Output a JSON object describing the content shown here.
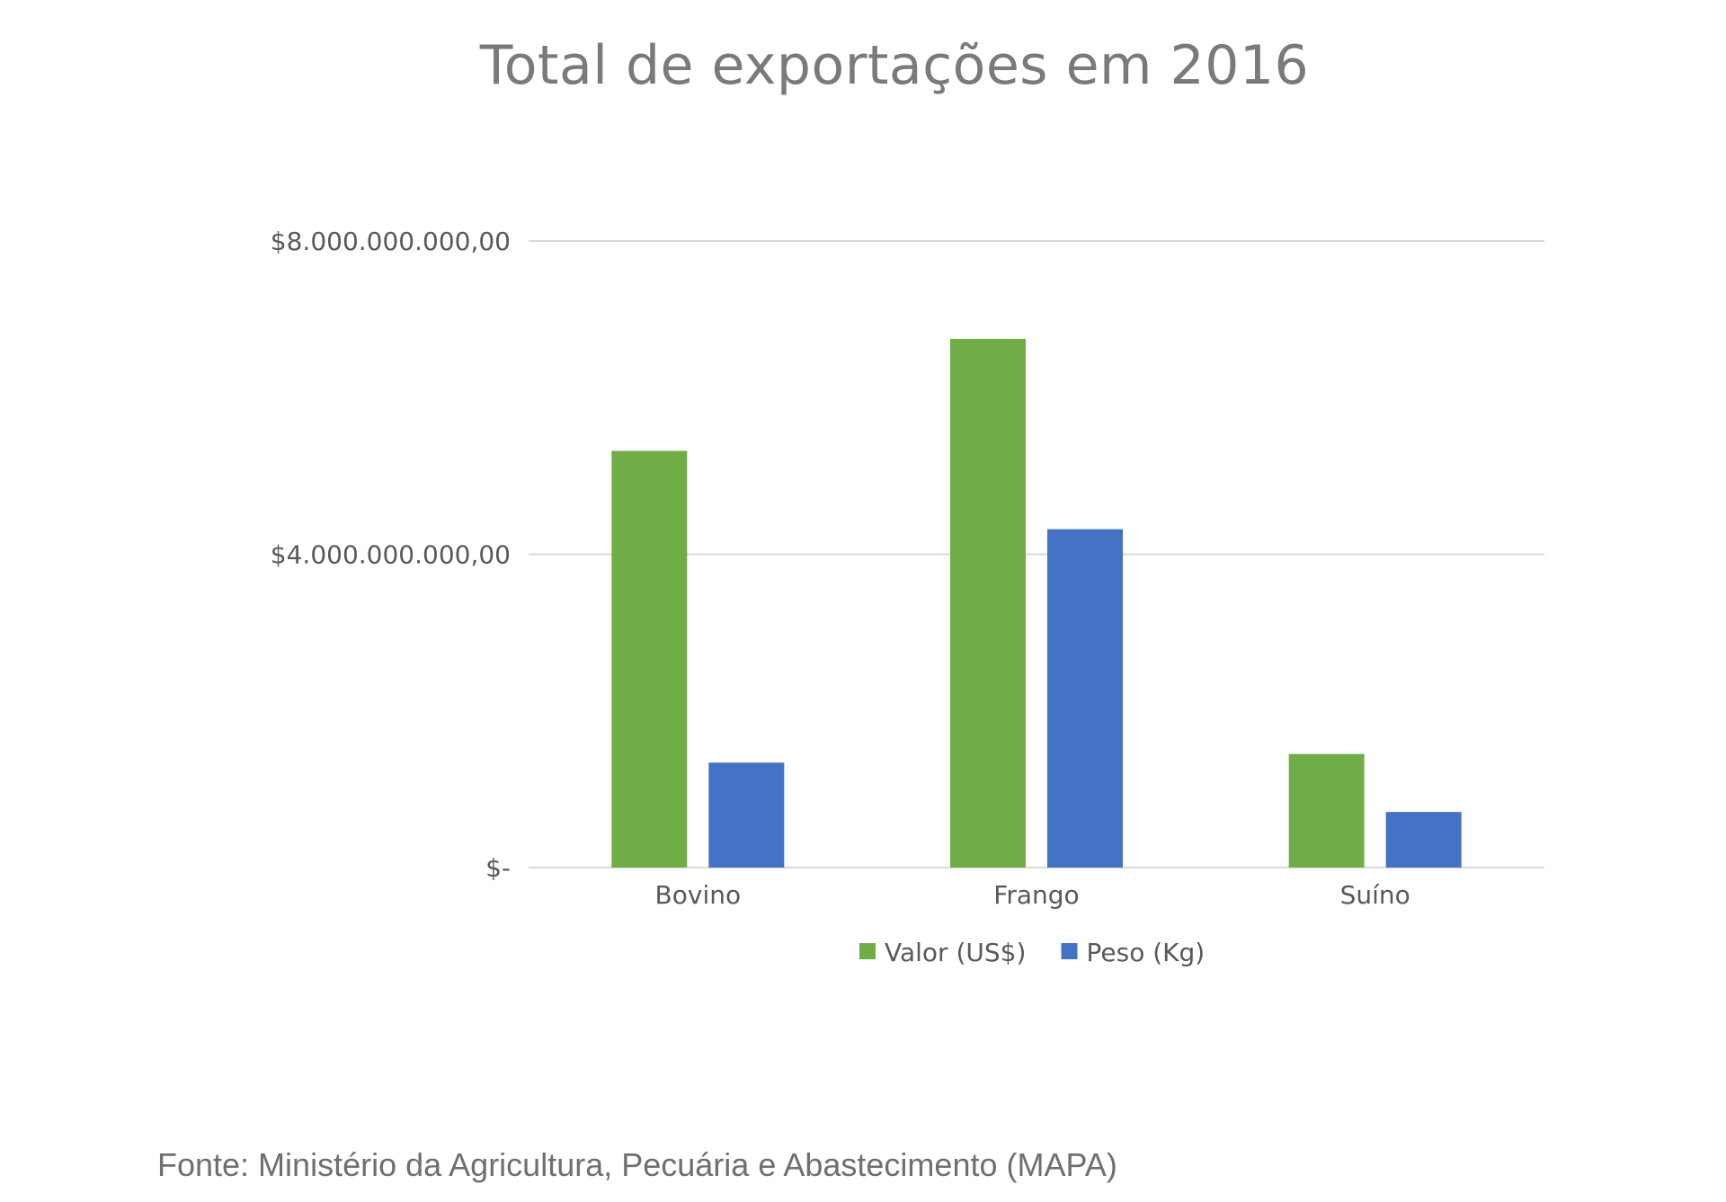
{
  "chart_data": {
    "type": "bar",
    "title": "Total de exportações em 2016",
    "categories": [
      "Bovino",
      "Frango",
      "Suíno"
    ],
    "series": [
      {
        "name": "Valor (US$)",
        "color": "#70ad47",
        "values": [
          5320000000,
          6750000000,
          1450000000
        ]
      },
      {
        "name": "Peso (Kg)",
        "color": "#4472c4",
        "values": [
          1340000000,
          4320000000,
          710000000
        ]
      }
    ],
    "ylim": [
      0,
      8000000000
    ],
    "yticks": [
      {
        "value": 0,
        "label": "$-"
      },
      {
        "value": 4000000000,
        "label": "$4.000.000.000,00"
      },
      {
        "value": 8000000000,
        "label": "$8.000.000.000,00"
      }
    ],
    "grid": true,
    "legend_position": "bottom",
    "xlabel": "",
    "ylabel": ""
  },
  "source": "Fonte: Ministério da Agricultura, Pecuária e Abastecimento (MAPA)"
}
